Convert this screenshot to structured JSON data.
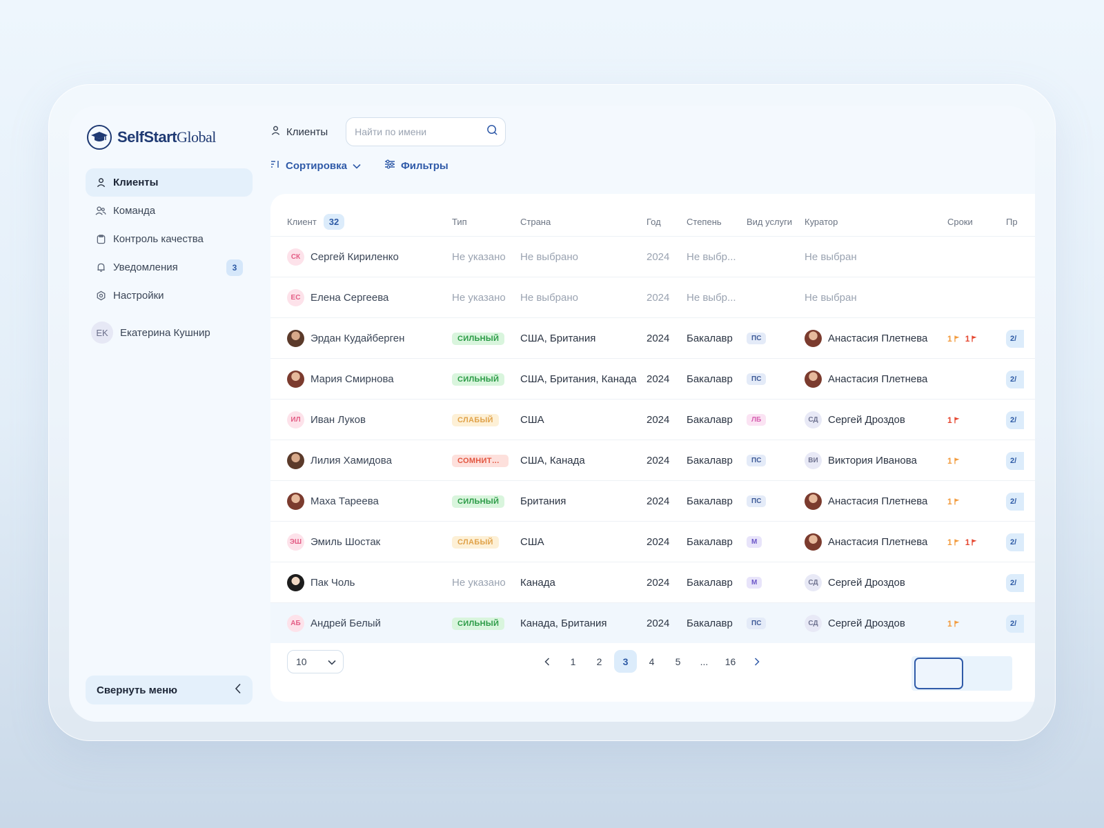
{
  "logo": {
    "bold": "SelfStart",
    "regular": "Global"
  },
  "sidebar": {
    "items": [
      {
        "label": "Клиенты",
        "icon": "user-icon",
        "active": true
      },
      {
        "label": "Команда",
        "icon": "team-icon"
      },
      {
        "label": "Контроль качества",
        "icon": "clipboard-icon"
      },
      {
        "label": "Уведомления",
        "icon": "bell-icon",
        "badge": "3"
      },
      {
        "label": "Настройки",
        "icon": "gear-icon"
      }
    ],
    "user": {
      "initials": "EK",
      "name": "Екатерина Кушнир"
    },
    "collapse_label": "Свернуть меню"
  },
  "header": {
    "title": "Клиенты",
    "search_placeholder": "Найти по имени",
    "sort_label": "Сортировка",
    "filter_label": "Фильтры"
  },
  "table": {
    "columns": {
      "client": "Клиент",
      "count": "32",
      "type": "Тип",
      "country": "Страна",
      "year": "Год",
      "degree": "Степень",
      "service": "Вид услуги",
      "curator": "Куратор",
      "terms": "Сроки",
      "pr": "Пр"
    },
    "rows": [
      {
        "initials": "СК",
        "name": "Сергей Кириленко",
        "type": "Не указано",
        "country": "Не выбрано",
        "year": "2024",
        "degree": "Не выбр...",
        "service": "",
        "curator": "Не выбран",
        "muted": true
      },
      {
        "initials": "ЕС",
        "name": "Елена Сергеева",
        "type": "Не указано",
        "country": "Не выбрано",
        "year": "2024",
        "degree": "Не выбр...",
        "service": "",
        "curator": "Не выбран",
        "muted": true
      },
      {
        "photo": 1,
        "name": "Эрдан Кудайберген",
        "type": "СИЛЬНЫЙ",
        "typeKind": "strong",
        "country": "США, Британия",
        "year": "2024",
        "degree": "Бакалавр",
        "service": "ПС",
        "svcKind": "ps",
        "curatorPhoto": 2,
        "curator": "Анастасия Плетнева",
        "flags": [
          "orange",
          "red"
        ],
        "pr": "2/"
      },
      {
        "photo": 2,
        "name": "Мария Смирнова",
        "type": "СИЛЬНЫЙ",
        "typeKind": "strong",
        "country": "США, Британия, Канада",
        "year": "2024",
        "degree": "Бакалавр",
        "service": "ПС",
        "svcKind": "ps",
        "curatorPhoto": 2,
        "curator": "Анастасия Плетнева",
        "flags": [],
        "pr": "2/"
      },
      {
        "initials": "ИЛ",
        "name": "Иван Луков",
        "type": "СЛАБЫЙ",
        "typeKind": "weak",
        "country": "США",
        "year": "2024",
        "degree": "Бакалавр",
        "service": "ЛБ",
        "svcKind": "lb",
        "curatorInitials": "СД",
        "curator": "Сергей Дроздов",
        "flags": [
          "red"
        ],
        "pr": "2/"
      },
      {
        "photo": 1,
        "name": "Лилия Хамидова",
        "type": "СОМНИТЕЛЬНЫЙ",
        "typeKind": "doubt",
        "country": "США, Канада",
        "year": "2024",
        "degree": "Бакалавр",
        "service": "ПС",
        "svcKind": "ps",
        "curatorInitials": "ВИ",
        "curator": "Виктория Иванова",
        "flags": [
          "orange"
        ],
        "pr": "2/"
      },
      {
        "photo": 2,
        "name": "Маха Тареева",
        "type": "СИЛЬНЫЙ",
        "typeKind": "strong",
        "country": "Британия",
        "year": "2024",
        "degree": "Бакалавр",
        "service": "ПС",
        "svcKind": "ps",
        "curatorPhoto": 2,
        "curator": "Анастасия Плетнева",
        "flags": [
          "orange"
        ],
        "pr": "2/"
      },
      {
        "initials": "ЭШ",
        "name": "Эмиль Шостак",
        "type": "СЛАБЫЙ",
        "typeKind": "weak",
        "country": "США",
        "year": "2024",
        "degree": "Бакалавр",
        "service": "М",
        "svcKind": "m",
        "curatorPhoto": 2,
        "curator": "Анастасия Плетнева",
        "flags": [
          "orange",
          "red"
        ],
        "pr": "2/"
      },
      {
        "photo": 3,
        "name": "Пак Чоль",
        "type": "Не указано",
        "typeKind": "none",
        "country": "Канада",
        "year": "2024",
        "degree": "Бакалавр",
        "service": "М",
        "svcKind": "m",
        "curatorInitials": "СД",
        "curator": "Сергей Дроздов",
        "flags": [],
        "pr": "2/"
      },
      {
        "initials": "АБ",
        "name": "Андрей Белый",
        "type": "СИЛЬНЫЙ",
        "typeKind": "strong",
        "country": "Канада, Британия",
        "year": "2024",
        "degree": "Бакалавр",
        "service": "ПС",
        "svcKind": "ps",
        "curatorInitials": "СД",
        "curator": "Сергей Дроздов",
        "flags": [
          "orange"
        ],
        "pr": "2/",
        "highlight": true
      }
    ]
  },
  "pagination": {
    "per_page": "10",
    "pages": [
      "1",
      "2",
      "3",
      "4",
      "5",
      "...",
      "16"
    ],
    "current": "3"
  }
}
